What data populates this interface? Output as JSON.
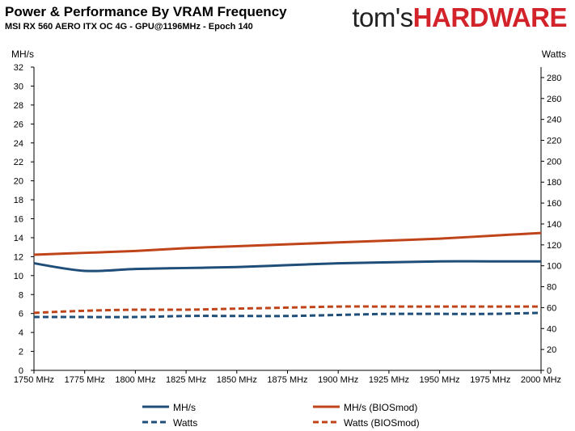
{
  "header": {
    "title": "Power & Performance By VRAM Frequency",
    "subtitle": "MSI RX 560 AERO ITX OC 4G - GPU@1196MHz - Epoch 140",
    "logo_left": "tom's",
    "logo_right": "HARDWARE"
  },
  "colors": {
    "blue": "#1f4e79",
    "orange": "#c0441a",
    "axis": "#000000",
    "logo_red": "#d2232a"
  },
  "chart_data": {
    "type": "line",
    "title": "Power & Performance By VRAM Frequency",
    "subtitle": "MSI RX 560 AERO ITX OC 4G - GPU@1196MHz - Epoch 140",
    "x": [
      "1750 MHz",
      "1775 MHz",
      "1800 MHz",
      "1825 MHz",
      "1850 MHz",
      "1875 MHz",
      "1900 MHz",
      "1925 MHz",
      "1950 MHz",
      "1975 MHz",
      "2000 MHz"
    ],
    "y_left": {
      "label": "MH/s",
      "min": 0,
      "max": 32,
      "step": 2
    },
    "y_right": {
      "label": "Watts",
      "min": 0,
      "max": 290,
      "step": 20
    },
    "grid": false,
    "legend_position": "bottom",
    "series": [
      {
        "name": "MH/s",
        "axis": "left",
        "style": "solid",
        "color": "#1f4e79",
        "values": [
          11.3,
          10.5,
          10.7,
          10.8,
          10.9,
          11.1,
          11.3,
          11.4,
          11.5,
          11.5,
          11.5
        ]
      },
      {
        "name": "MH/s (BIOSmod)",
        "axis": "left",
        "style": "solid",
        "color": "#c0441a",
        "values": [
          12.2,
          12.4,
          12.6,
          12.9,
          13.1,
          13.3,
          13.5,
          13.7,
          13.9,
          14.2,
          14.5
        ]
      },
      {
        "name": "Watts",
        "axis": "right",
        "style": "dashed",
        "color": "#1f4e79",
        "values": [
          51,
          51,
          51,
          52,
          52,
          52,
          53,
          54,
          54,
          54,
          55
        ]
      },
      {
        "name": "Watts (BIOSmod)",
        "axis": "right",
        "style": "dashed",
        "color": "#c0441a",
        "values": [
          55,
          57,
          58,
          58,
          59,
          60,
          61,
          61,
          61,
          61,
          61
        ]
      }
    ]
  }
}
